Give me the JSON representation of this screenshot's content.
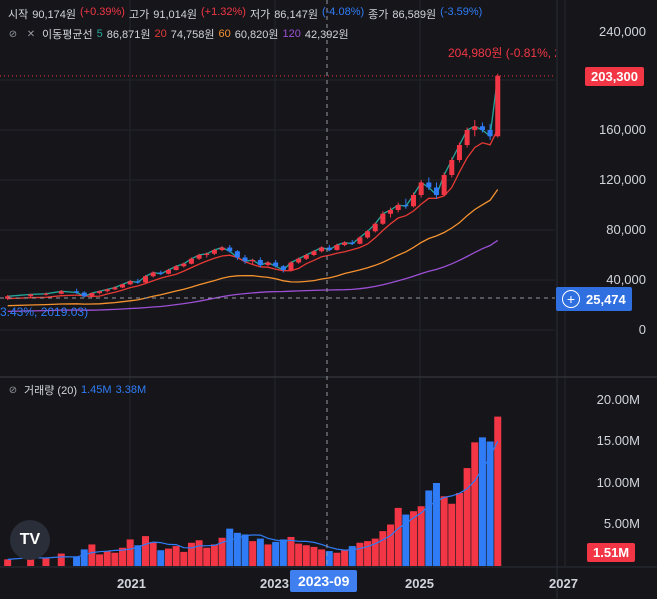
{
  "ohlc": {
    "open_label": "시작",
    "open": "90,174원",
    "open_chg": "(+0.39%)",
    "high_label": "고가",
    "high": "91,014원",
    "high_chg": "(+1.32%)",
    "low_label": "저가",
    "low": "86,147원",
    "low_chg": "(-4.08%)",
    "close_label": "종가",
    "close": "86,589원",
    "close_chg": "(-3.59%)"
  },
  "ma": {
    "label": "이동평균선",
    "p1": "5",
    "v1": "86,871원",
    "p2": "20",
    "v2": "74,758원",
    "p3": "60",
    "v3": "60,820원",
    "p4": "120",
    "v4": "42,392원"
  },
  "volume": {
    "label": "거래량 (20)",
    "v1": "1.45M",
    "v2": "3.38M"
  },
  "price_axis": [
    "240,000",
    "200,000",
    "160,000",
    "120,000",
    "80,000",
    "40,000",
    "0"
  ],
  "volume_axis": [
    "20.00M",
    "15.00M",
    "10.00M",
    "5.00M"
  ],
  "tags": {
    "last_price": "203,300",
    "crosshair_price": "25,474",
    "last_volume": "1.51M",
    "high_note": "204,980원 (-0.81%, 2026.",
    "low_note": "3.43%, 2019.03)",
    "crosshair_date": "2023-09"
  },
  "x_axis": [
    "2021",
    "2023",
    "2025",
    "2027"
  ],
  "icons": [
    "eye-off-icon",
    "close-icon",
    "plus-circle-icon",
    "tradingview-logo"
  ],
  "colors": {
    "up": "#f23645",
    "down": "#2f7cf6",
    "ma5": "#26a69a",
    "ma20": "#e53935",
    "ma60": "#f5922f",
    "ma120": "#9c4fd4"
  },
  "chart_data": {
    "type": "candlestick",
    "price_range": [
      0,
      240000
    ],
    "volume_range": [
      0,
      20000000
    ],
    "candles": [
      [
        2019.1,
        25000,
        28000,
        24000,
        27000,
        0.8
      ],
      [
        2019.4,
        27000,
        29000,
        26000,
        28500,
        1.2
      ],
      [
        2019.6,
        28500,
        30000,
        27500,
        29000,
        0.9
      ],
      [
        2019.8,
        29000,
        32000,
        28500,
        31000,
        1.5
      ],
      [
        2020.0,
        31000,
        33000,
        29000,
        30000,
        1.1
      ],
      [
        2020.1,
        30000,
        31000,
        26000,
        27000,
        2.0
      ],
      [
        2020.2,
        27000,
        30000,
        26000,
        29500,
        2.6
      ],
      [
        2020.3,
        29500,
        31500,
        28500,
        31000,
        1.4
      ],
      [
        2020.4,
        31000,
        33000,
        30000,
        32500,
        1.8
      ],
      [
        2020.5,
        32500,
        35000,
        32000,
        34000,
        1.6
      ],
      [
        2020.6,
        34000,
        37000,
        33500,
        36500,
        2.2
      ],
      [
        2020.7,
        36500,
        40000,
        36000,
        39000,
        3.2
      ],
      [
        2020.8,
        39000,
        41000,
        37000,
        38000,
        2.5
      ],
      [
        2020.9,
        38000,
        44000,
        37500,
        43000,
        3.6
      ],
      [
        2021.0,
        43000,
        47000,
        42000,
        46000,
        2.9
      ],
      [
        2021.1,
        46000,
        47500,
        44000,
        45000,
        1.9
      ],
      [
        2021.2,
        45000,
        49000,
        44500,
        48000,
        2.1
      ],
      [
        2021.3,
        48000,
        52000,
        47500,
        51000,
        2.4
      ],
      [
        2021.4,
        51000,
        54000,
        50000,
        53000,
        1.7
      ],
      [
        2021.5,
        53000,
        58000,
        52500,
        57000,
        2.8
      ],
      [
        2021.6,
        57000,
        61000,
        56000,
        60000,
        3.1
      ],
      [
        2021.7,
        60000,
        62000,
        58000,
        61000,
        2.2
      ],
      [
        2021.8,
        61000,
        65000,
        60000,
        64000,
        2.6
      ],
      [
        2021.9,
        64000,
        67000,
        63000,
        66000,
        3.4
      ],
      [
        2022.0,
        66000,
        68000,
        62000,
        63000,
        4.5
      ],
      [
        2022.1,
        63000,
        64000,
        56000,
        58000,
        4.0
      ],
      [
        2022.2,
        58000,
        60000,
        53000,
        55000,
        3.8
      ],
      [
        2022.3,
        55000,
        57000,
        52000,
        56000,
        3.0
      ],
      [
        2022.4,
        56000,
        58000,
        50000,
        52000,
        3.3
      ],
      [
        2022.5,
        52000,
        55000,
        51000,
        54000,
        2.6
      ],
      [
        2022.6,
        54000,
        56000,
        50000,
        51000,
        2.9
      ],
      [
        2022.7,
        51000,
        52000,
        46000,
        48000,
        3.2
      ],
      [
        2022.8,
        48000,
        55000,
        47000,
        54000,
        3.5
      ],
      [
        2022.9,
        54000,
        58000,
        53000,
        57000,
        2.7
      ],
      [
        2023.0,
        57000,
        61000,
        56000,
        60000,
        2.5
      ],
      [
        2023.1,
        60000,
        64000,
        59000,
        63000,
        2.3
      ],
      [
        2023.2,
        63000,
        67000,
        62000,
        66000,
        2.0
      ],
      [
        2023.3,
        66000,
        68000,
        63000,
        64000,
        1.8
      ],
      [
        2023.4,
        64000,
        69000,
        63500,
        68000,
        1.6
      ],
      [
        2023.5,
        68000,
        71000,
        67000,
        70000,
        1.9
      ],
      [
        2023.6,
        70000,
        72000,
        68000,
        69000,
        2.4
      ],
      [
        2023.7,
        69000,
        75000,
        68500,
        74000,
        2.8
      ],
      [
        2023.8,
        74000,
        80000,
        73000,
        79000,
        3.0
      ],
      [
        2023.9,
        79000,
        86000,
        78000,
        85000,
        3.3
      ],
      [
        2024.0,
        85000,
        95000,
        84000,
        93000,
        4.2
      ],
      [
        2024.1,
        93000,
        98000,
        90000,
        96000,
        5.0
      ],
      [
        2024.2,
        96000,
        102000,
        94000,
        100000,
        7.0
      ],
      [
        2024.3,
        100000,
        105000,
        97000,
        99000,
        6.2
      ],
      [
        2024.4,
        99000,
        110000,
        98000,
        108000,
        6.6
      ],
      [
        2024.5,
        108000,
        120000,
        106000,
        118000,
        7.2
      ],
      [
        2024.6,
        118000,
        122000,
        112000,
        114000,
        9.1
      ],
      [
        2024.7,
        114000,
        118000,
        105000,
        108000,
        10.0
      ],
      [
        2024.8,
        108000,
        126000,
        107000,
        124000,
        8.4
      ],
      [
        2024.9,
        124000,
        138000,
        122000,
        136000,
        7.5
      ],
      [
        2025.0,
        136000,
        150000,
        134000,
        148000,
        8.8
      ],
      [
        2025.1,
        148000,
        162000,
        146000,
        160000,
        11.8
      ],
      [
        2025.2,
        160000,
        168000,
        155000,
        163000,
        14.9
      ],
      [
        2025.3,
        163000,
        166000,
        158000,
        160000,
        15.5
      ],
      [
        2025.4,
        160000,
        165000,
        152000,
        155000,
        15.0
      ],
      [
        2025.5,
        155000,
        204980,
        154000,
        203300,
        18.0
      ]
    ]
  }
}
